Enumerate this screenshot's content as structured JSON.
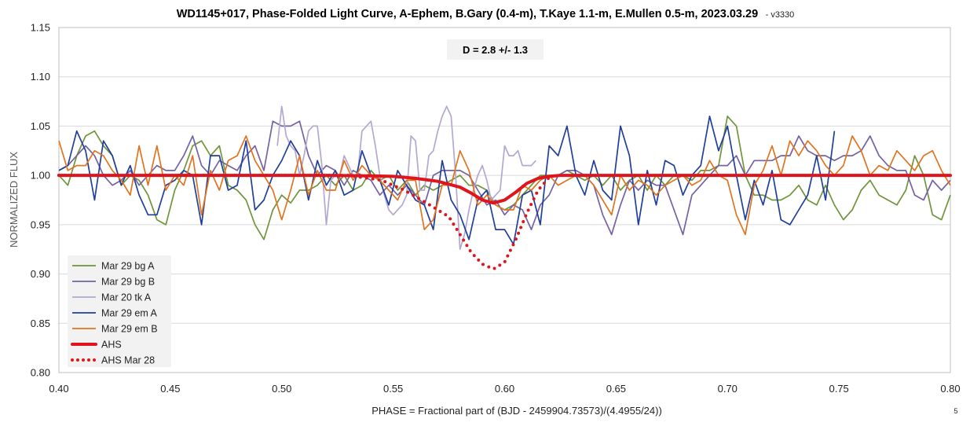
{
  "chart_data": {
    "type": "line",
    "title": "WD1145+017, Phase-Folded Light Curve, A-Ephem, B.Gary (0.4-m), T.Kaye 1.1-m, E.Mullen 0.5-m, 2023.03.29",
    "title_suffix": "- v3330",
    "xlabel": "PHASE = Fractional part of (BJD - 2459904.73573)/(4.4955/24))",
    "ylabel": "NORMALIZED FLUX",
    "xlim": [
      0.4,
      0.8
    ],
    "ylim": [
      0.8,
      1.15
    ],
    "xticks": [
      "0.40",
      "0.45",
      "0.50",
      "0.55",
      "0.60",
      "0.65",
      "0.70",
      "0.75",
      "0.80"
    ],
    "yticks": [
      "0.80",
      "0.85",
      "0.90",
      "0.95",
      "1.00",
      "1.05",
      "1.10",
      "1.15"
    ],
    "grid": "horizontal",
    "legend_position": "bottom-left",
    "annotation": "D = 2.8 +/- 1.3",
    "page_number": "5",
    "series": [
      {
        "name": "Mar 29 bg A",
        "color": "#70953a",
        "style": "thin",
        "x": [
          0.4,
          0.404,
          0.408,
          0.412,
          0.416,
          0.42,
          0.424,
          0.428,
          0.432,
          0.436,
          0.44,
          0.444,
          0.448,
          0.452,
          0.456,
          0.46,
          0.464,
          0.468,
          0.472,
          0.476,
          0.48,
          0.484,
          0.488,
          0.492,
          0.496,
          0.5,
          0.504,
          0.508,
          0.512,
          0.516,
          0.52,
          0.524,
          0.528,
          0.532,
          0.536,
          0.54,
          0.544,
          0.548,
          0.552,
          0.556,
          0.56,
          0.564,
          0.568,
          0.572,
          0.576,
          0.58,
          0.584,
          0.588,
          0.592,
          0.596,
          0.6,
          0.604,
          0.608,
          0.612,
          0.616,
          0.62,
          0.624,
          0.628,
          0.632,
          0.636,
          0.64,
          0.644,
          0.648,
          0.652,
          0.656,
          0.66,
          0.664,
          0.668,
          0.672,
          0.676,
          0.68,
          0.684,
          0.688,
          0.692,
          0.696,
          0.7,
          0.704,
          0.708,
          0.712,
          0.716,
          0.72,
          0.724,
          0.728,
          0.732,
          0.736,
          0.74,
          0.744,
          0.748,
          0.752,
          0.756,
          0.76,
          0.764,
          0.768,
          0.772,
          0.776,
          0.78,
          0.784,
          0.788,
          0.792,
          0.796,
          0.8
        ],
        "y": [
          1.0,
          0.99,
          1.02,
          1.04,
          1.045,
          1.03,
          1.02,
          0.99,
          1.0,
          0.995,
          0.98,
          0.955,
          0.95,
          0.985,
          1.005,
          1.03,
          1.035,
          1.02,
          1.03,
          0.99,
          0.985,
          0.975,
          0.95,
          0.935,
          0.965,
          0.98,
          0.972,
          0.985,
          0.985,
          0.99,
          1.0,
          0.99,
          1.0,
          0.985,
          0.99,
          1.005,
          0.995,
          1.0,
          0.985,
          0.995,
          0.98,
          0.99,
          0.985,
          0.99,
          0.995,
          1.0,
          0.99,
          0.99,
          0.985,
          0.97,
          0.965,
          0.97,
          0.98,
          0.99,
          1.0,
          1.0,
          1.0,
          1.005,
          1.0,
          0.995,
          1.0,
          0.99,
          1.0,
          0.985,
          0.995,
          1.0,
          0.985,
          1.0,
          0.99,
          1.0,
          1.0,
          0.995,
          1.005,
          1.005,
          1.01,
          1.06,
          1.05,
          1.0,
          0.98,
          0.98,
          0.975,
          0.975,
          0.98,
          0.99,
          0.975,
          0.97,
          0.99,
          0.97,
          0.955,
          0.965,
          0.985,
          0.995,
          0.98,
          0.975,
          0.97,
          0.985,
          1.02,
          1.0,
          0.96,
          0.955,
          0.98
        ]
      },
      {
        "name": "Mar 29 bg B",
        "color": "#7562a4",
        "style": "thin",
        "x": [
          0.4,
          0.404,
          0.408,
          0.412,
          0.416,
          0.42,
          0.424,
          0.428,
          0.432,
          0.436,
          0.44,
          0.444,
          0.448,
          0.452,
          0.456,
          0.46,
          0.464,
          0.468,
          0.472,
          0.476,
          0.48,
          0.484,
          0.488,
          0.492,
          0.496,
          0.5,
          0.504,
          0.508,
          0.512,
          0.516,
          0.52,
          0.524,
          0.528,
          0.532,
          0.536,
          0.54,
          0.544,
          0.548,
          0.552,
          0.556,
          0.56,
          0.564,
          0.568,
          0.572,
          0.576,
          0.58,
          0.584,
          0.588,
          0.592,
          0.596,
          0.6,
          0.604,
          0.608,
          0.612,
          0.616,
          0.62,
          0.624,
          0.628,
          0.632,
          0.636,
          0.64,
          0.644,
          0.648,
          0.652,
          0.656,
          0.66,
          0.664,
          0.668,
          0.672,
          0.676,
          0.68,
          0.684,
          0.688,
          0.692,
          0.696,
          0.7,
          0.704,
          0.708,
          0.712,
          0.716,
          0.72,
          0.724,
          0.728,
          0.732,
          0.736,
          0.74,
          0.744,
          0.748,
          0.752,
          0.756,
          0.76,
          0.764,
          0.768,
          0.772,
          0.776,
          0.78,
          0.784,
          0.788,
          0.792,
          0.796,
          0.8
        ],
        "y": [
          1.005,
          1.01,
          1.02,
          1.03,
          1.02,
          1.0,
          0.99,
          0.995,
          1.005,
          0.99,
          1.0,
          1.01,
          1.005,
          1.005,
          1.02,
          1.04,
          1.01,
          1.0,
          1.015,
          1.01,
          1.005,
          1.02,
          1.03,
          1.005,
          1.055,
          1.05,
          1.05,
          1.055,
          1.02,
          1.0,
          1.01,
          1.005,
          0.99,
          1.005,
          1.0,
          0.995,
          0.98,
          0.99,
          0.98,
          0.99,
          0.98,
          0.97,
          1.0,
          1.005,
          1.005,
          1.005,
          1.0,
          0.985,
          0.97,
          0.975,
          0.96,
          0.97,
          0.965,
          0.945,
          0.97,
          0.98,
          1.0,
          1.005,
          1.005,
          1.0,
          0.99,
          0.96,
          0.94,
          0.97,
          0.995,
          0.985,
          0.995,
          0.99,
          0.99,
          0.965,
          0.94,
          0.98,
          0.99,
          1.0,
          1.01,
          1.01,
          1.02,
          1.0,
          1.015,
          1.015,
          1.015,
          1.02,
          1.02,
          1.04,
          1.025,
          1.02,
          1.02,
          1.015,
          1.02,
          1.02,
          1.025,
          1.04,
          1.02,
          1.01,
          1.005,
          1.005,
          0.98,
          0.975,
          0.995,
          0.985,
          0.995
        ]
      },
      {
        "name": "Mar 20 tk A",
        "color": "#b4a7d0",
        "style": "thin",
        "x": [
          0.498,
          0.5,
          0.502,
          0.504,
          0.506,
          0.508,
          0.51,
          0.512,
          0.514,
          0.516,
          0.518,
          0.52,
          0.522,
          0.524,
          0.526,
          0.528,
          0.53,
          0.532,
          0.534,
          0.536,
          0.538,
          0.54,
          0.542,
          0.544,
          0.546,
          0.548,
          0.55,
          0.552,
          0.554,
          0.556,
          0.558,
          0.56,
          0.562,
          0.564,
          0.566,
          0.568,
          0.57,
          0.572,
          0.574,
          0.576,
          0.578,
          0.58,
          0.582,
          0.584,
          0.586,
          0.588,
          0.59,
          0.592,
          0.594,
          0.596,
          0.598,
          0.6,
          0.602,
          0.604,
          0.606,
          0.608,
          0.61,
          0.612,
          0.614
        ],
        "y": [
          1.03,
          1.07,
          1.04,
          1.03,
          1.025,
          1.0,
          1.02,
          1.045,
          1.05,
          1.05,
          1.01,
          0.95,
          0.995,
          1.0,
          1.0,
          1.02,
          1.01,
          1.0,
          1.0,
          1.045,
          1.05,
          1.055,
          1.03,
          1.0,
          0.98,
          0.965,
          0.96,
          0.965,
          0.97,
          0.98,
          1.04,
          1.035,
          0.985,
          0.985,
          1.02,
          1.025,
          1.045,
          1.06,
          1.07,
          1.06,
          1.0,
          0.925,
          0.94,
          0.965,
          0.985,
          1.0,
          1.01,
          0.995,
          0.975,
          0.98,
          0.985,
          1.03,
          1.02,
          1.02,
          1.025,
          1.01,
          1.01,
          1.01,
          1.015
        ]
      },
      {
        "name": "Mar 29 em A",
        "color": "#1f3f9b",
        "style": "thin",
        "x": [
          0.4,
          0.404,
          0.408,
          0.412,
          0.416,
          0.42,
          0.424,
          0.428,
          0.432,
          0.436,
          0.44,
          0.444,
          0.448,
          0.452,
          0.456,
          0.46,
          0.464,
          0.468,
          0.472,
          0.476,
          0.48,
          0.484,
          0.488,
          0.492,
          0.496,
          0.5,
          0.504,
          0.508,
          0.512,
          0.516,
          0.52,
          0.524,
          0.528,
          0.532,
          0.536,
          0.54,
          0.544,
          0.548,
          0.552,
          0.556,
          0.56,
          0.564,
          0.568,
          0.572,
          0.576,
          0.58,
          0.584,
          0.588,
          0.592,
          0.596,
          0.6,
          0.604,
          0.608,
          0.612,
          0.616,
          0.62,
          0.624,
          0.628,
          0.632,
          0.636,
          0.64,
          0.644,
          0.648,
          0.652,
          0.656,
          0.66,
          0.664,
          0.668,
          0.672,
          0.676,
          0.68,
          0.684,
          0.688,
          0.692,
          0.696,
          0.7,
          0.704,
          0.708,
          0.712,
          0.716,
          0.72,
          0.724,
          0.728,
          0.732,
          0.736,
          0.74,
          0.744,
          0.748
        ],
        "y": [
          1.005,
          1.01,
          1.045,
          1.025,
          0.975,
          1.035,
          1.02,
          0.99,
          1.01,
          0.98,
          0.96,
          0.96,
          0.99,
          0.995,
          1.005,
          1.0,
          0.95,
          1.02,
          1.02,
          0.985,
          0.99,
          1.035,
          0.965,
          0.975,
          1.0,
          1.015,
          1.035,
          1.02,
          0.975,
          1.015,
          0.99,
          1.005,
          0.98,
          0.985,
          1.025,
          1.0,
          0.995,
          0.97,
          1.005,
          0.99,
          0.975,
          0.97,
          0.945,
          1.015,
          0.975,
          0.96,
          0.935,
          0.975,
          0.985,
          0.945,
          0.945,
          0.93,
          0.98,
          0.985,
          0.95,
          1.03,
          1.02,
          1.05,
          1.0,
          0.98,
          1.015,
          0.985,
          0.975,
          1.05,
          1.02,
          0.95,
          1.005,
          0.97,
          1.015,
          1.01,
          0.98,
          1.0,
          1.01,
          1.06,
          1.025,
          1.05,
          1.0,
          0.955,
          0.995,
          0.97,
          1.005,
          0.955,
          0.95,
          0.965,
          0.98,
          1.02,
          0.975,
          1.045
        ]
      },
      {
        "name": "Mar 29 em B",
        "color": "#e0741f",
        "style": "thin",
        "x": [
          0.4,
          0.404,
          0.408,
          0.412,
          0.416,
          0.42,
          0.424,
          0.428,
          0.432,
          0.436,
          0.44,
          0.444,
          0.448,
          0.452,
          0.456,
          0.46,
          0.464,
          0.468,
          0.472,
          0.476,
          0.48,
          0.484,
          0.488,
          0.492,
          0.496,
          0.5,
          0.504,
          0.508,
          0.512,
          0.516,
          0.52,
          0.524,
          0.528,
          0.532,
          0.536,
          0.54,
          0.544,
          0.548,
          0.552,
          0.556,
          0.56,
          0.564,
          0.568,
          0.572,
          0.576,
          0.58,
          0.584,
          0.588,
          0.592,
          0.596,
          0.6,
          0.604,
          0.608,
          0.612,
          0.616,
          0.62,
          0.624,
          0.628,
          0.632,
          0.636,
          0.64,
          0.644,
          0.648,
          0.652,
          0.656,
          0.66,
          0.664,
          0.668,
          0.672,
          0.676,
          0.68,
          0.684,
          0.688,
          0.692,
          0.696,
          0.7,
          0.704,
          0.708,
          0.712,
          0.716,
          0.72,
          0.724,
          0.728,
          0.732,
          0.736,
          0.74,
          0.744,
          0.748,
          0.752,
          0.756,
          0.76,
          0.764,
          0.768,
          0.772,
          0.776,
          0.78,
          0.784,
          0.788,
          0.792,
          0.796,
          0.8
        ],
        "y": [
          1.035,
          1.005,
          1.01,
          1.01,
          1.025,
          1.02,
          1.005,
          0.995,
          0.98,
          1.03,
          0.99,
          1.03,
          0.985,
          1.0,
          0.99,
          1.02,
          0.96,
          1.005,
          0.985,
          1.015,
          1.02,
          1.04,
          1.015,
          1.0,
          0.985,
          0.955,
          0.985,
          1.02,
          0.98,
          1.005,
          0.985,
          0.985,
          1.015,
          0.995,
          1.01,
          1.0,
          0.995,
          0.985,
          0.975,
          0.995,
          0.995,
          0.945,
          0.955,
          0.99,
          0.99,
          1.025,
          1.005,
          0.97,
          0.98,
          0.97,
          0.965,
          0.965,
          0.99,
          0.985,
          0.995,
          1.0,
          0.99,
          0.995,
          1.0,
          1.0,
          0.99,
          0.975,
          0.96,
          1.0,
          0.985,
          0.995,
          0.99,
          0.98,
          0.99,
          0.995,
          1.0,
          0.99,
          0.995,
          1.015,
          1.0,
          0.995,
          0.96,
          0.94,
          0.99,
          1.005,
          1.03,
          1.0,
          1.035,
          1.02,
          1.035,
          1.025,
          1.01,
          1.0,
          1.01,
          1.04,
          1.025,
          1.0,
          1.01,
          1.005,
          1.025,
          1.015,
          1.005,
          1.02,
          1.025,
          1.005,
          0.99
        ]
      },
      {
        "name": "AHS",
        "color": "#e0141c",
        "style": "thick",
        "x": [
          0.4,
          0.52,
          0.54,
          0.55,
          0.56,
          0.57,
          0.58,
          0.585,
          0.59,
          0.595,
          0.6,
          0.605,
          0.61,
          0.615,
          0.62,
          0.625,
          0.63,
          0.64,
          0.8
        ],
        "y": [
          1.0,
          1.0,
          0.9995,
          0.999,
          0.997,
          0.994,
          0.988,
          0.982,
          0.975,
          0.972,
          0.975,
          0.983,
          0.992,
          0.997,
          0.999,
          1.0,
          1.0,
          1.0,
          1.0
        ]
      },
      {
        "name": "AHS Mar 28",
        "color": "#e0141c",
        "style": "dotted",
        "x": [
          0.4,
          0.53,
          0.545,
          0.555,
          0.565,
          0.575,
          0.58,
          0.585,
          0.59,
          0.595,
          0.6,
          0.605,
          0.61,
          0.615,
          0.62
        ],
        "y": [
          1.0,
          1.0,
          0.995,
          0.985,
          0.972,
          0.958,
          0.94,
          0.922,
          0.91,
          0.905,
          0.912,
          0.935,
          0.962,
          0.985,
          0.998
        ]
      }
    ]
  }
}
